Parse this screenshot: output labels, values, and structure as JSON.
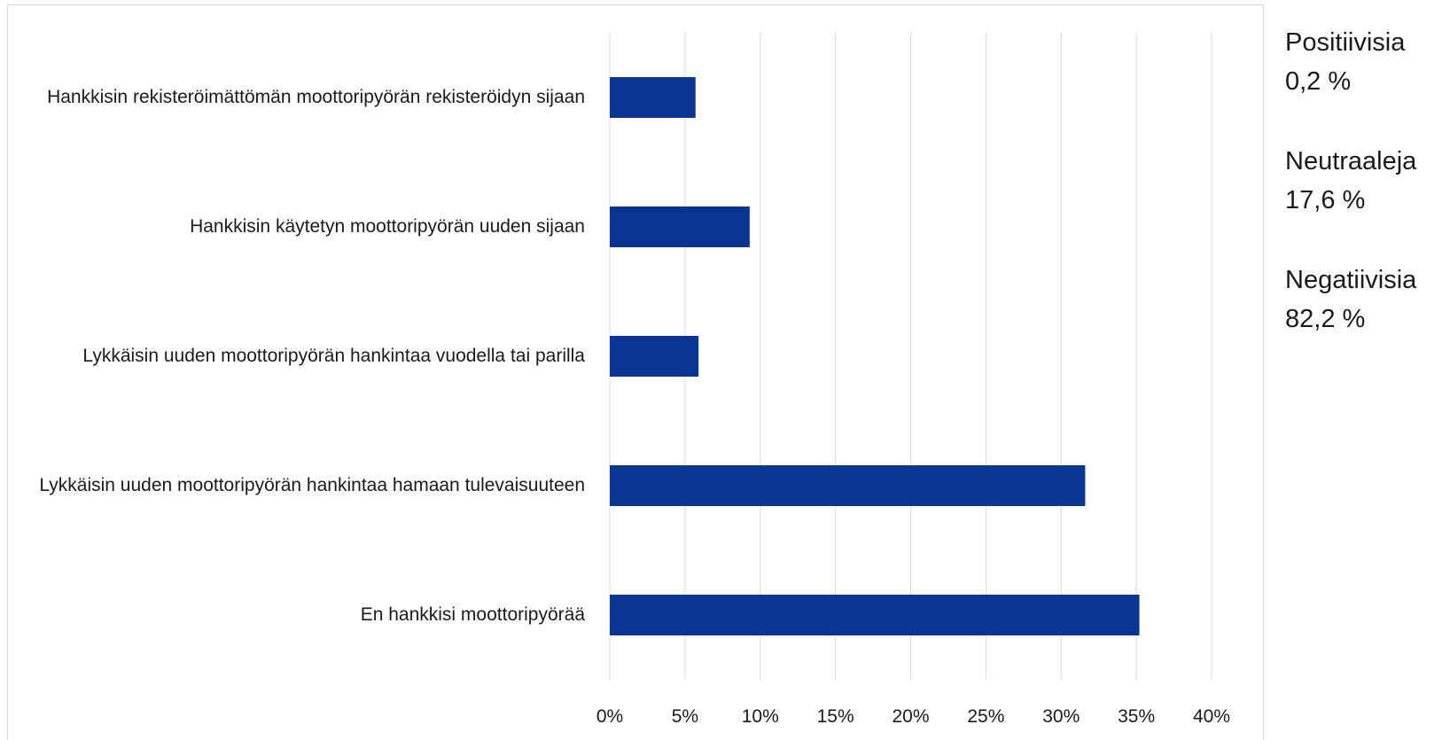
{
  "chart_data": {
    "type": "barh",
    "categories": [
      "Hankkisin rekisteröimättömän moottoripyörän rekisteröidyn sijaan",
      "Hankkisin käytetyn moottoripyörän uuden sijaan",
      "Lykkäisin uuden moottoripyörän hankintaa vuodella tai parilla",
      "Lykkäisin uuden moottoripyörän hankintaa hamaan tulevaisuuteen",
      "En hankkisi moottoripyörää"
    ],
    "values": [
      5.7,
      9.3,
      5.9,
      31.6,
      35.2
    ],
    "color": "#0a3592",
    "xlim": [
      0,
      40
    ],
    "xticks": [
      {
        "value": 0,
        "label": "0%"
      },
      {
        "value": 5,
        "label": "5%"
      },
      {
        "value": 10,
        "label": "10%"
      },
      {
        "value": 15,
        "label": "15%"
      },
      {
        "value": 20,
        "label": "20%"
      },
      {
        "value": 25,
        "label": "25%"
      },
      {
        "value": 30,
        "label": "30%"
      },
      {
        "value": 35,
        "label": "35%"
      },
      {
        "value": 40,
        "label": "40%"
      }
    ],
    "grid": true,
    "annotations": [
      {
        "label": "Positiivisia",
        "value": "0,2 %"
      },
      {
        "label": "Neutraaleja",
        "value": "17,6 %"
      },
      {
        "label": "Negatiivisia",
        "value": "82,2 %"
      }
    ]
  }
}
